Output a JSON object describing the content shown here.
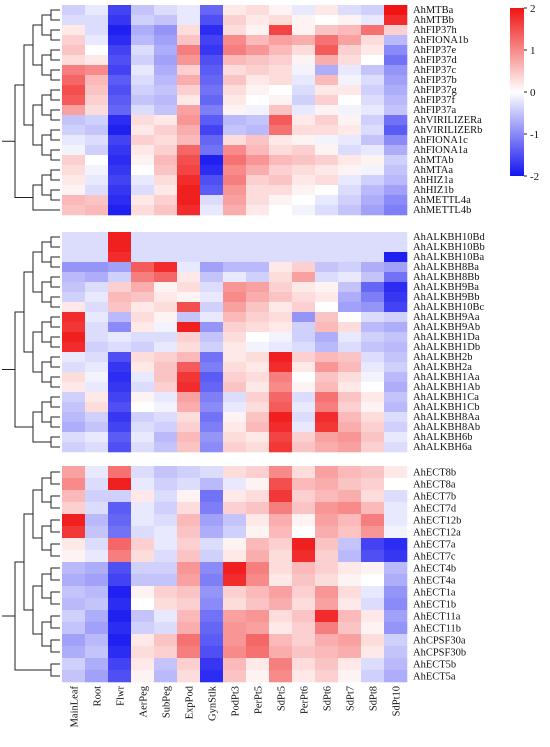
{
  "chart_data": {
    "type": "heatmap",
    "title": "",
    "xlabel": "",
    "ylabel": "",
    "columns": [
      "MainLeaf",
      "Root",
      "Flwr",
      "AerPeg",
      "SubPeg",
      "ExpPod",
      "GynStlk",
      "PodPt3",
      "PerPt5",
      "SdPt5",
      "PerPt6",
      "SdPt6",
      "SdPt7",
      "SdPt8",
      "SdPt10"
    ],
    "color_scale": {
      "min": -2,
      "max": 2,
      "ticks": [
        2,
        1,
        0,
        -1,
        -2
      ],
      "low_color": "#1414f0",
      "mid_color": "#ffffff",
      "high_color": "#f01414"
    },
    "blocks": [
      {
        "rows": [
          "AhMTBa",
          "AhMTBb",
          "AhFIP37h",
          "AhFIONA1b",
          "AhFIP37e",
          "AhFIP37d",
          "AhFIP37c",
          "AhFIP37b",
          "AhFIP37g",
          "AhFIP37f",
          "AhFIP37a",
          "AhVIRILIZERa",
          "AhVIRILIZERb",
          "AhFIONA1c",
          "AhFIONA1a",
          "AhMTAb",
          "AhMTAa",
          "AhHIZ1a",
          "AhHIZ1b",
          "AhMETTL4a",
          "AhMETTL4b"
        ],
        "values": [
          [
            -0.4,
            -0.2,
            -1.6,
            -0.5,
            -0.3,
            -0.2,
            -1.3,
            0.2,
            0.3,
            0.1,
            -0.2,
            0.2,
            -0.3,
            -0.4,
            2.0
          ],
          [
            -0.3,
            -0.3,
            -1.7,
            -0.4,
            -0.5,
            -0.2,
            -1.5,
            0.4,
            0.2,
            0.3,
            0.1,
            0.0,
            0.1,
            -0.2,
            1.8
          ],
          [
            0.2,
            -0.3,
            -1.9,
            -0.7,
            -0.9,
            0.3,
            -1.8,
            0.3,
            0.1,
            1.6,
            0.1,
            0.5,
            0.6,
            1.2,
            0.4
          ],
          [
            0.4,
            -0.2,
            -1.8,
            -0.6,
            -0.8,
            0.5,
            -1.6,
            1.0,
            0.6,
            0.8,
            0.7,
            1.2,
            0.8,
            0.3,
            -0.6
          ],
          [
            0.5,
            0.0,
            -1.6,
            -0.3,
            -0.7,
            1.1,
            -1.7,
            1.1,
            0.9,
            0.6,
            0.3,
            1.4,
            0.4,
            0.2,
            -1.0
          ],
          [
            0.3,
            0.2,
            -1.5,
            -0.4,
            -0.8,
            0.9,
            -1.5,
            0.6,
            0.5,
            0.4,
            0.1,
            0.7,
            0.3,
            0.0,
            -1.2
          ],
          [
            1.1,
            1.0,
            -1.6,
            -0.2,
            -0.7,
            0.4,
            -1.4,
            0.3,
            0.4,
            0.3,
            -0.1,
            -0.7,
            -0.2,
            -0.5,
            -0.9
          ],
          [
            1.3,
            0.6,
            -1.4,
            -0.3,
            -0.6,
            0.7,
            -1.3,
            0.5,
            0.2,
            0.3,
            -0.2,
            0.6,
            -0.1,
            -0.3,
            -0.8
          ],
          [
            1.5,
            0.5,
            -1.5,
            -0.4,
            -0.5,
            0.4,
            -1.2,
            0.3,
            0.1,
            0.0,
            -0.3,
            0.2,
            0.2,
            -0.4,
            -0.7
          ],
          [
            1.4,
            0.4,
            -1.4,
            -0.5,
            -0.6,
            0.2,
            -1.3,
            0.2,
            0.0,
            0.1,
            -0.4,
            0.4,
            0.0,
            -0.3,
            -0.6
          ],
          [
            0.8,
            0.3,
            -1.3,
            -0.3,
            -0.5,
            0.8,
            -1.1,
            0.1,
            -0.1,
            0.5,
            -0.2,
            0.1,
            -0.1,
            -0.2,
            -0.5
          ],
          [
            -0.5,
            -0.4,
            -1.8,
            0.3,
            0.2,
            0.9,
            -1.4,
            -0.6,
            -0.5,
            1.4,
            0.2,
            0.4,
            0.1,
            -0.4,
            -1.2
          ],
          [
            -0.4,
            -0.5,
            -1.9,
            0.2,
            0.4,
            0.7,
            -1.6,
            -0.5,
            -0.6,
            1.2,
            0.3,
            0.3,
            0.2,
            -0.3,
            -1.4
          ],
          [
            -0.2,
            -0.3,
            -1.6,
            0.4,
            0.3,
            0.6,
            -1.3,
            0.3,
            0.5,
            0.2,
            0.1,
            -0.1,
            -0.2,
            -0.5,
            -1.0
          ],
          [
            -0.1,
            -0.4,
            -1.7,
            0.2,
            0.4,
            1.3,
            -1.2,
            1.0,
            0.6,
            0.3,
            0.4,
            0.1,
            -0.3,
            -0.2,
            -0.7
          ],
          [
            0.4,
            0.0,
            -1.8,
            0.1,
            0.6,
            1.5,
            -1.9,
            1.2,
            0.9,
            0.6,
            0.5,
            0.4,
            0.2,
            0.1,
            -0.4
          ],
          [
            0.3,
            -0.1,
            -1.7,
            0.0,
            0.5,
            1.6,
            -1.8,
            1.0,
            0.7,
            0.4,
            0.3,
            0.2,
            0.1,
            -0.1,
            -0.5
          ],
          [
            0.2,
            -0.2,
            -1.6,
            -0.2,
            0.3,
            1.8,
            -1.5,
            1.1,
            0.4,
            0.5,
            0.2,
            0.3,
            -0.2,
            -0.4,
            -0.6
          ],
          [
            0.1,
            -0.3,
            -1.7,
            -0.3,
            0.2,
            1.9,
            -1.4,
            0.9,
            0.3,
            0.3,
            0.1,
            0.0,
            -0.3,
            -0.6,
            -0.8
          ],
          [
            0.6,
            0.5,
            -1.8,
            0.2,
            0.4,
            1.9,
            -0.3,
            0.8,
            0.3,
            0.1,
            0.0,
            -0.2,
            -0.4,
            -0.7,
            -1.0
          ],
          [
            0.5,
            0.6,
            -1.9,
            0.3,
            0.5,
            1.8,
            -0.2,
            0.7,
            0.2,
            0.0,
            -0.1,
            -0.3,
            -0.5,
            -0.8,
            -1.1
          ]
        ]
      },
      {
        "rows": [
          "AhALKBH10Bd",
          "AhALKBH10Bb",
          "AhALKBH10Ba",
          "AhALKBH8Ba",
          "AhALKBH8Bb",
          "AhALKBH9Ba",
          "AhALKBH9Bb",
          "AhALKBH10Bc",
          "AhALKBH9Aa",
          "AhALKBH9Ab",
          "AhALKBH1Da",
          "AhALKBH1Db",
          "AhALKBH2b",
          "AhALKBH2a",
          "AhALKBH1Aa",
          "AhALKBH1Ab",
          "AhALKBH1Ca",
          "AhALKBH1Cb",
          "AhALKBH8Aa",
          "AhALKBH8Ab",
          "AhALKBH6b",
          "AhALKBH6a"
        ],
        "values": [
          [
            -0.3,
            -0.3,
            1.9,
            -0.3,
            -0.3,
            -0.3,
            -0.3,
            -0.3,
            -0.3,
            -0.3,
            -0.3,
            -0.3,
            -0.3,
            -0.3,
            -0.3
          ],
          [
            -0.3,
            -0.3,
            1.9,
            -0.3,
            -0.3,
            -0.3,
            -0.3,
            -0.3,
            -0.3,
            -0.3,
            -0.3,
            -0.3,
            -0.3,
            -0.3,
            -0.3
          ],
          [
            -0.3,
            -0.3,
            1.8,
            -0.3,
            -0.3,
            -0.3,
            -0.3,
            -0.3,
            -0.3,
            -0.3,
            -0.3,
            -0.3,
            -0.3,
            -0.3,
            -1.9
          ],
          [
            -0.9,
            -0.9,
            -0.8,
            1.4,
            1.8,
            -0.2,
            -0.8,
            -0.6,
            -0.6,
            0.2,
            0.4,
            -0.5,
            -0.4,
            -0.7,
            -0.8
          ],
          [
            -0.6,
            -0.7,
            -0.4,
            1.1,
            1.3,
            0.2,
            -0.5,
            -0.2,
            -0.4,
            0.3,
            0.8,
            -0.3,
            -0.2,
            -0.5,
            -1.2
          ],
          [
            -0.5,
            -0.3,
            0.4,
            0.7,
            0.1,
            0.3,
            -0.3,
            0.9,
            0.8,
            0.4,
            0.2,
            0.1,
            -0.5,
            -1.3,
            -1.8
          ],
          [
            -0.4,
            -0.2,
            0.6,
            0.5,
            0.2,
            0.1,
            -0.2,
            1.0,
            0.7,
            0.5,
            0.3,
            0.2,
            -0.7,
            -1.1,
            -1.7
          ],
          [
            0.2,
            -0.3,
            0.5,
            0.2,
            0.3,
            1.5,
            -0.4,
            0.8,
            0.5,
            0.2,
            0.4,
            0.0,
            -0.8,
            -0.9,
            -1.6
          ],
          [
            1.8,
            -0.2,
            -0.6,
            0.3,
            0.1,
            -0.5,
            -0.2,
            0.6,
            0.4,
            0.3,
            -0.9,
            0.5,
            0.0,
            -0.3,
            -0.4
          ],
          [
            1.7,
            -0.3,
            -1.0,
            0.2,
            -0.1,
            1.9,
            -0.9,
            0.4,
            0.3,
            0.2,
            -0.4,
            0.6,
            0.3,
            -0.6,
            -0.7
          ],
          [
            1.9,
            -0.3,
            -0.2,
            -0.3,
            -0.3,
            0.4,
            -0.5,
            0.3,
            0.0,
            -0.1,
            -0.4,
            -0.7,
            -0.2,
            -0.4,
            -0.5
          ],
          [
            1.8,
            -0.4,
            -0.3,
            -0.4,
            -0.2,
            0.3,
            -0.4,
            0.2,
            -0.1,
            -0.2,
            -0.3,
            -0.6,
            -0.3,
            -0.5,
            -0.6
          ],
          [
            -0.2,
            -0.3,
            -1.5,
            0.3,
            0.4,
            0.6,
            -1.2,
            0.2,
            0.3,
            1.9,
            0.4,
            0.6,
            0.5,
            -0.3,
            -0.5
          ],
          [
            -0.3,
            -0.2,
            -1.7,
            0.2,
            0.5,
            1.4,
            -1.1,
            0.3,
            0.2,
            1.8,
            0.2,
            0.9,
            0.6,
            -0.2,
            -0.4
          ],
          [
            0.3,
            -0.1,
            -1.8,
            -0.2,
            0.5,
            1.7,
            -1.4,
            0.4,
            0.3,
            1.1,
            0.0,
            0.5,
            0.3,
            -0.1,
            -0.6
          ],
          [
            0.2,
            -0.2,
            -1.7,
            -0.3,
            0.4,
            1.8,
            -1.3,
            0.5,
            0.2,
            1.0,
            0.1,
            0.6,
            0.2,
            0.0,
            -0.7
          ],
          [
            -0.4,
            0.2,
            -1.6,
            0.1,
            -0.2,
            0.8,
            -1.1,
            -0.3,
            0.4,
            1.3,
            -0.3,
            1.2,
            0.5,
            0.2,
            -0.5
          ],
          [
            -0.5,
            0.3,
            -1.5,
            0.0,
            -0.1,
            0.7,
            -1.0,
            -0.2,
            0.3,
            1.4,
            -0.2,
            1.1,
            0.4,
            0.1,
            -0.6
          ],
          [
            -0.6,
            -0.4,
            -1.7,
            -0.4,
            -0.3,
            0.3,
            -1.2,
            0.1,
            0.5,
            1.9,
            -0.3,
            1.8,
            0.6,
            0.3,
            -0.3
          ],
          [
            -0.7,
            -0.5,
            -1.6,
            -0.3,
            -0.4,
            0.4,
            -1.1,
            0.2,
            0.6,
            1.8,
            -0.2,
            1.7,
            0.7,
            0.4,
            -0.4
          ],
          [
            -0.3,
            -0.2,
            -1.4,
            -0.2,
            -0.6,
            0.6,
            -0.9,
            0.3,
            0.2,
            1.6,
            0.4,
            0.8,
            0.9,
            0.5,
            -0.2
          ],
          [
            -0.4,
            -0.3,
            -1.5,
            -0.3,
            -0.5,
            0.5,
            -1.0,
            0.4,
            0.3,
            1.7,
            0.5,
            0.7,
            0.8,
            0.4,
            -0.3
          ]
        ]
      },
      {
        "rows": [
          "AhECT8b",
          "AhECT8a",
          "AhECT7b",
          "AhECT7d",
          "AhECT12b",
          "AhECT12a",
          "AhECT7a",
          "AhECT7c",
          "AhECT4b",
          "AhECT4a",
          "AhECT1a",
          "AhECT1b",
          "AhECT11a",
          "AhECT11b",
          "AhCPSF30a",
          "AhCPSF30b",
          "AhECT5b",
          "AhECT5a"
        ],
        "values": [
          [
            0.8,
            -0.2,
            1.2,
            -0.3,
            -0.5,
            -0.4,
            -0.3,
            0.3,
            0.4,
            1.0,
            0.3,
            0.8,
            0.6,
            0.5,
            0.2
          ],
          [
            1.0,
            -0.3,
            1.9,
            -0.2,
            -0.4,
            -0.3,
            -0.6,
            -0.2,
            0.1,
            1.5,
            0.6,
            0.7,
            0.5,
            0.4,
            0.0
          ],
          [
            0.6,
            -0.4,
            -0.4,
            0.2,
            -0.3,
            0.1,
            -1.2,
            0.2,
            0.3,
            1.7,
            0.4,
            0.6,
            0.7,
            0.3,
            -0.3
          ],
          [
            0.4,
            -0.3,
            -1.4,
            -0.2,
            -0.4,
            0.3,
            -1.1,
            0.4,
            0.5,
            1.1,
            0.5,
            0.9,
            1.0,
            0.6,
            -0.2
          ],
          [
            1.9,
            -0.6,
            -1.3,
            -0.2,
            -0.3,
            0.6,
            -0.8,
            -0.5,
            0.2,
            0.7,
            0.1,
            0.8,
            0.6,
            1.1,
            -0.2
          ],
          [
            1.7,
            -0.5,
            -1.2,
            -0.3,
            -0.2,
            0.5,
            -0.7,
            -0.4,
            0.1,
            0.6,
            0.0,
            0.7,
            0.5,
            0.9,
            -0.1
          ],
          [
            0.2,
            -0.3,
            1.3,
            0.4,
            -0.2,
            0.4,
            -0.3,
            0.1,
            0.6,
            0.4,
            1.9,
            0.5,
            -0.5,
            -1.6,
            -1.8
          ],
          [
            0.1,
            -0.2,
            1.1,
            0.3,
            -0.3,
            0.5,
            -0.4,
            0.2,
            0.7,
            0.3,
            1.8,
            0.4,
            -0.6,
            -1.5,
            -1.7
          ],
          [
            -0.6,
            -0.7,
            -1.5,
            -0.4,
            -0.4,
            0.9,
            -1.0,
            1.9,
            1.1,
            0.3,
            0.6,
            0.4,
            0.2,
            0.1,
            -0.6
          ],
          [
            -0.7,
            -0.8,
            -1.6,
            -0.5,
            -0.5,
            0.8,
            -1.1,
            1.8,
            1.0,
            0.2,
            0.5,
            0.3,
            0.1,
            0.0,
            -0.7
          ],
          [
            -0.5,
            -0.6,
            -1.9,
            0.1,
            0.4,
            0.5,
            -0.9,
            0.4,
            0.6,
            0.8,
            0.4,
            0.9,
            0.3,
            -0.2,
            -0.9
          ],
          [
            -0.6,
            -0.5,
            -1.8,
            0.0,
            0.3,
            0.4,
            -1.0,
            0.3,
            0.5,
            0.7,
            0.3,
            0.8,
            0.2,
            -0.3,
            -1.0
          ],
          [
            -0.4,
            -0.7,
            -1.9,
            -0.5,
            -0.2,
            0.6,
            -1.2,
            0.8,
            0.9,
            0.3,
            0.5,
            1.8,
            0.6,
            0.2,
            -0.8
          ],
          [
            -0.5,
            -0.8,
            -1.8,
            -0.4,
            -0.3,
            0.7,
            -1.3,
            0.9,
            0.8,
            0.2,
            0.4,
            1.1,
            0.5,
            0.1,
            -0.9
          ],
          [
            -0.8,
            -0.6,
            -1.9,
            0.2,
            0.5,
            1.2,
            -1.4,
            0.9,
            1.3,
            0.6,
            0.4,
            0.7,
            0.8,
            0.3,
            -0.4
          ],
          [
            -0.7,
            -0.5,
            -1.8,
            0.3,
            0.4,
            1.1,
            -1.5,
            1.0,
            1.2,
            0.7,
            0.5,
            0.6,
            0.7,
            0.2,
            -0.5
          ],
          [
            -0.4,
            -0.7,
            -1.6,
            0.2,
            -0.5,
            0.4,
            -1.7,
            0.6,
            0.2,
            1.1,
            0.3,
            0.5,
            0.2,
            -0.3,
            -0.6
          ],
          [
            -0.5,
            -0.8,
            -1.5,
            0.1,
            -0.6,
            0.3,
            -1.8,
            0.5,
            0.1,
            1.0,
            0.2,
            0.4,
            0.1,
            -0.4,
            -0.7
          ]
        ]
      }
    ]
  }
}
